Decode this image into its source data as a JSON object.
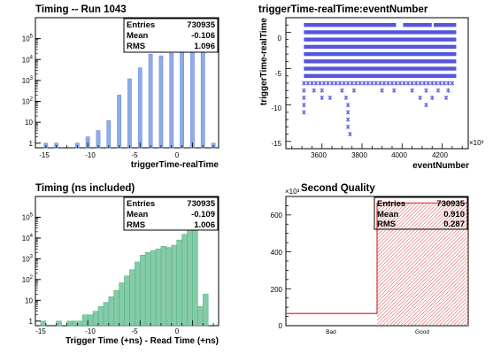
{
  "chart_data": [
    {
      "type": "bar",
      "title": "Timing -- Run 1043",
      "xlabel": "triggerTime-realTime",
      "ylabel": "",
      "yscale": "log",
      "xlim": [
        -15,
        2.5
      ],
      "ylim": [
        0.6,
        1000000
      ],
      "x_ticks": [
        "-15",
        "-10",
        "-5",
        "0"
      ],
      "y_ticks": [
        "1",
        "10",
        "10^2",
        "10^3",
        "10^4",
        "10^5"
      ],
      "bar_color": "#6a8fe0",
      "x": [
        -14,
        -13,
        -11,
        -10,
        -9,
        -8,
        -7,
        -6,
        -5,
        -4,
        -3,
        -2,
        -1,
        0,
        1,
        2
      ],
      "values": [
        1,
        1,
        1,
        2,
        4,
        12,
        200,
        1200,
        4000,
        18000,
        15000,
        20000,
        30000,
        150000,
        250000,
        1
      ],
      "stats": [
        {
          "label": "Entries",
          "value": "730935"
        },
        {
          "label": "Mean",
          "value": "-0.106"
        },
        {
          "label": "RMS",
          "value": "1.096"
        }
      ]
    },
    {
      "type": "scatter",
      "title": "triggerTime-realTime:eventNumber",
      "xlabel": "eventNumber",
      "ylabel": "triggerTime-realTime",
      "xlim": [
        3420,
        4330
      ],
      "ylim": [
        -16,
        2
      ],
      "x_ticks": [
        "3600",
        "3800",
        "4000",
        "4200"
      ],
      "x_multiplier": "×10³",
      "y_ticks": [
        "-15",
        "-10",
        "-5",
        "0"
      ],
      "marker_color": "#5555dd",
      "row_x_range": [
        3510,
        4270
      ],
      "dense_rows": [
        1,
        0,
        -1,
        -2,
        -3,
        -4,
        -5,
        -6
      ],
      "gaps": [
        {
          "y": 1,
          "x": [
            3970,
            4005
          ]
        },
        {
          "y": 1,
          "x": [
            4148,
            4158
          ]
        }
      ],
      "row_minus7_x": [
        3510,
        3530,
        3550,
        3570,
        3590,
        3610,
        3630,
        3650,
        3670,
        3690,
        3710,
        3730,
        3750,
        3770,
        3790,
        3810,
        3830,
        3850,
        3870,
        3890,
        3910,
        3930,
        3950,
        3970,
        3990,
        4010,
        4030,
        4050,
        4070,
        4090,
        4110,
        4130,
        4150,
        4170,
        4190,
        4210,
        4230,
        4250
      ],
      "sparse_points": [
        {
          "x": 3510,
          "y": -8
        },
        {
          "x": 3560,
          "y": -8
        },
        {
          "x": 3600,
          "y": -8
        },
        {
          "x": 3700,
          "y": -8
        },
        {
          "x": 3760,
          "y": -8
        },
        {
          "x": 3900,
          "y": -8
        },
        {
          "x": 3960,
          "y": -8
        },
        {
          "x": 4050,
          "y": -8
        },
        {
          "x": 4120,
          "y": -8
        },
        {
          "x": 4180,
          "y": -8
        },
        {
          "x": 4230,
          "y": -8
        },
        {
          "x": 3510,
          "y": -9
        },
        {
          "x": 3600,
          "y": -9
        },
        {
          "x": 3640,
          "y": -9
        },
        {
          "x": 3720,
          "y": -9
        },
        {
          "x": 4090,
          "y": -9
        },
        {
          "x": 4150,
          "y": -9
        },
        {
          "x": 4220,
          "y": -9
        },
        {
          "x": 3510,
          "y": -10
        },
        {
          "x": 3730,
          "y": -10
        },
        {
          "x": 4120,
          "y": -10
        },
        {
          "x": 3510,
          "y": -11
        },
        {
          "x": 3730,
          "y": -11
        },
        {
          "x": 3730,
          "y": -12
        },
        {
          "x": 3730,
          "y": -13
        },
        {
          "x": 3740,
          "y": -14
        }
      ]
    },
    {
      "type": "bar",
      "title": "Timing (ns included)",
      "xlabel": "Trigger Time (+ns) - Read Time (+ns)",
      "ylabel": "",
      "yscale": "log",
      "xlim": [
        -15,
        2.5
      ],
      "ylim": [
        0.6,
        1000000
      ],
      "x_ticks": [
        "-15",
        "-10",
        "-5",
        "0"
      ],
      "y_ticks": [
        "1",
        "10",
        "10^2",
        "10^3",
        "10^4",
        "10^5"
      ],
      "bar_color": "#5cb88c",
      "x": [
        -14.75,
        -14.25,
        -13.75,
        -13.25,
        -12.75,
        -12.25,
        -11.75,
        -11.25,
        -10.75,
        -10.25,
        -9.75,
        -9.25,
        -8.75,
        -8.25,
        -7.75,
        -7.25,
        -6.75,
        -6.25,
        -5.75,
        -5.25,
        -4.75,
        -4.25,
        -3.75,
        -3.25,
        -2.75,
        -2.25,
        -1.75,
        -1.25,
        -0.75,
        -0.25,
        0.25,
        0.75,
        1.25,
        1.75,
        2.25
      ],
      "values": [
        0,
        1,
        0,
        0,
        1,
        0,
        1,
        1,
        1,
        2,
        2,
        3,
        5,
        8,
        15,
        30,
        70,
        150,
        300,
        700,
        1500,
        2000,
        2500,
        3000,
        4000,
        3500,
        4500,
        8000,
        15000,
        60000,
        200000,
        5,
        20,
        0,
        0
      ],
      "stats": [
        {
          "label": "Entries",
          "value": "730935"
        },
        {
          "label": "Mean",
          "value": "-0.109"
        },
        {
          "label": "RMS",
          "value": "1.006"
        }
      ]
    },
    {
      "type": "bar",
      "title": "Second Quality",
      "xlabel": "",
      "ylabel": "",
      "ylim": [
        0,
        700
      ],
      "y_ticks": [
        "0",
        "200",
        "400",
        "600"
      ],
      "y_multiplier": "×10³",
      "categories": [
        "Bad",
        "Good"
      ],
      "values": [
        66,
        665
      ],
      "bar_color": "#dd3333",
      "stats": [
        {
          "label": "Entries",
          "value": "730935"
        },
        {
          "label": "Mean",
          "value": "0.910"
        },
        {
          "label": "RMS",
          "value": "0.287"
        }
      ]
    }
  ]
}
